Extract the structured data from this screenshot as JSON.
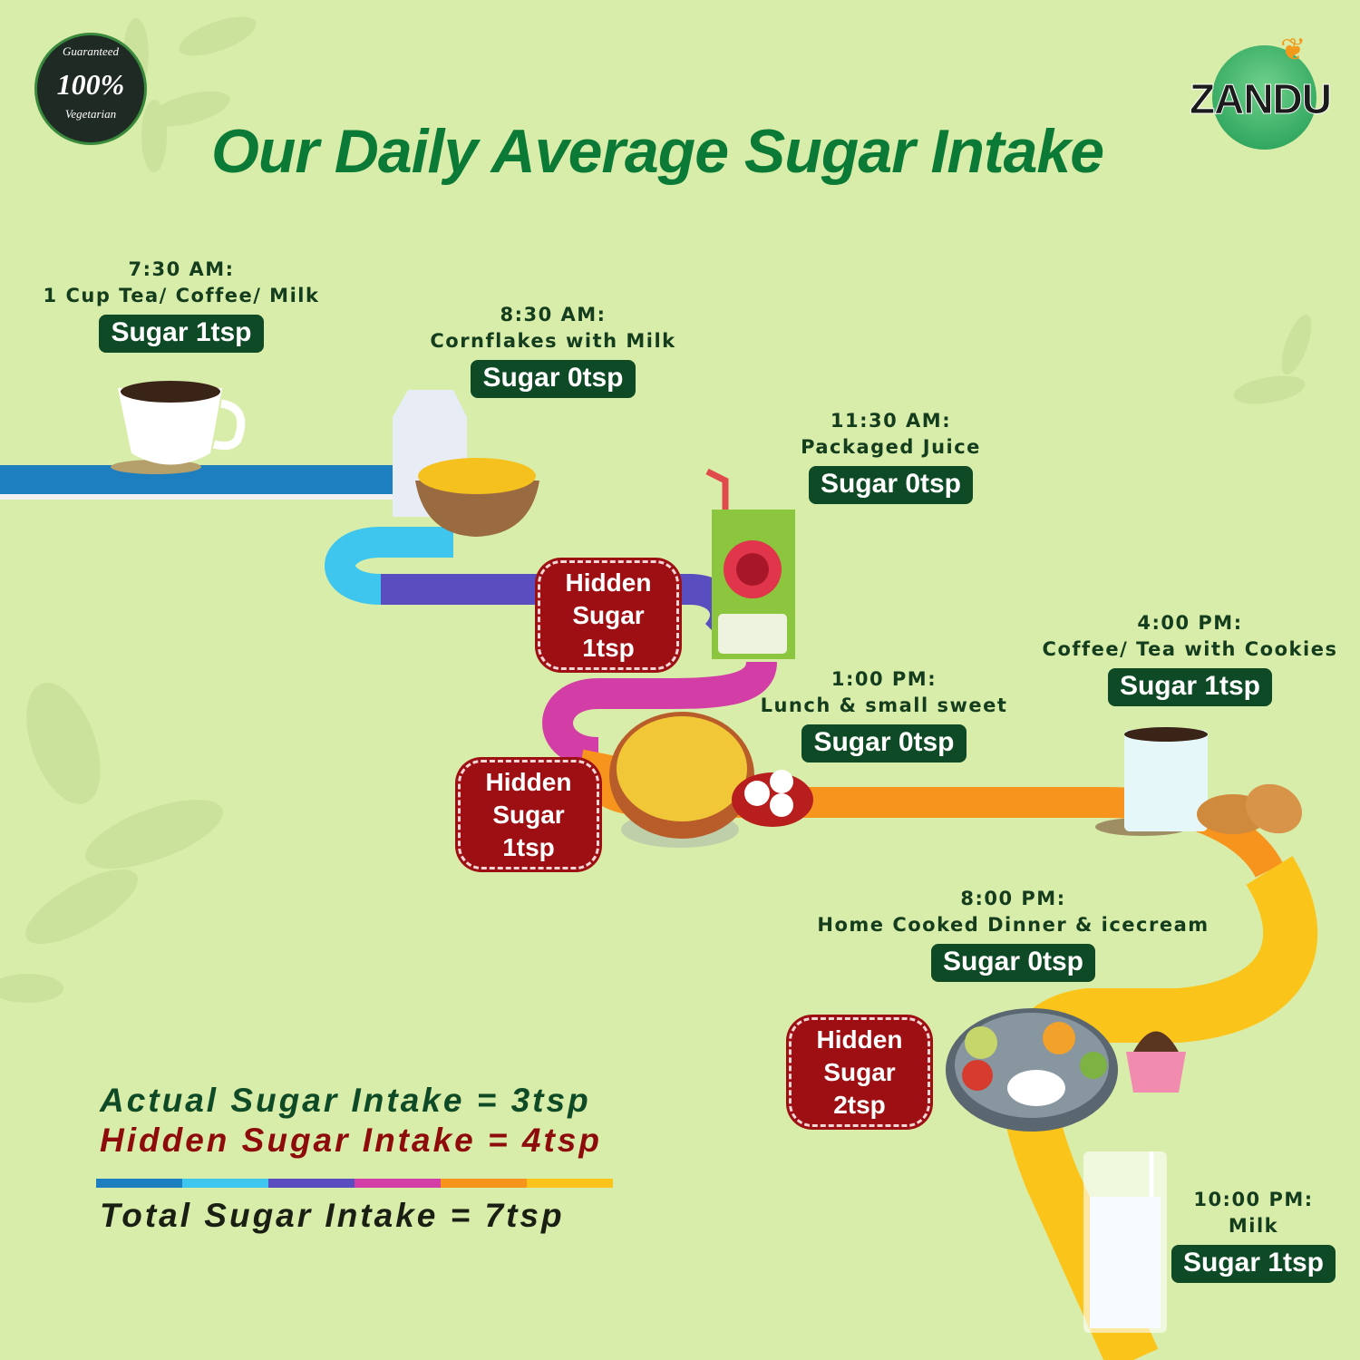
{
  "badge": {
    "top_text": "Guaranteed",
    "center_text": "100%",
    "bottom_text": "Vegetarian"
  },
  "brand": {
    "logo_text": "ZANDU"
  },
  "title": "Our Daily Average Sugar Intake",
  "colors": {
    "background": "#d9edaa",
    "title": "#0b7a36",
    "pill": "#0e4a26",
    "hidden": "#9e0f14",
    "road": [
      "#1d7fc0",
      "#3ec6ee",
      "#5a4dbf",
      "#d23ea6",
      "#f7941d",
      "#fbc41b"
    ]
  },
  "timeline": [
    {
      "time": "7:30 AM:",
      "item": "1 Cup Tea/ Coffee/ Milk",
      "sugar": "Sugar 1tsp",
      "icon": "tea-cup-icon"
    },
    {
      "time": "8:30 AM:",
      "item": "Cornflakes with Milk",
      "sugar": "Sugar 0tsp",
      "icon": "cornflakes-bowl-icon"
    },
    {
      "time": "11:30 AM:",
      "item": "Packaged Juice",
      "sugar": "Sugar 0tsp",
      "icon": "juice-box-icon"
    },
    {
      "time": "1:00 PM:",
      "item": "Lunch & small sweet",
      "sugar": "Sugar 0tsp",
      "icon": "lunch-plate-icon"
    },
    {
      "time": "4:00 PM:",
      "item": "Coffee/ Tea with Cookies",
      "sugar": "Sugar 1tsp",
      "icon": "coffee-cookies-icon"
    },
    {
      "time": "8:00 PM:",
      "item": "Home Cooked Dinner & icecream",
      "sugar": "Sugar 0tsp",
      "icon": "thali-icon"
    },
    {
      "time": "10:00 PM:",
      "item": "Milk",
      "sugar": "Sugar 1tsp",
      "icon": "milk-glass-icon"
    }
  ],
  "hidden_sugar": [
    {
      "line1": "Hidden",
      "line2": "Sugar",
      "line3": "1tsp"
    },
    {
      "line1": "Hidden",
      "line2": "Sugar",
      "line3": "1tsp"
    },
    {
      "line1": "Hidden",
      "line2": "Sugar",
      "line3": "2tsp"
    }
  ],
  "summary": {
    "actual": "Actual Sugar Intake = 3tsp",
    "hidden": "Hidden Sugar Intake = 4tsp",
    "total": "Total Sugar Intake = 7tsp"
  }
}
